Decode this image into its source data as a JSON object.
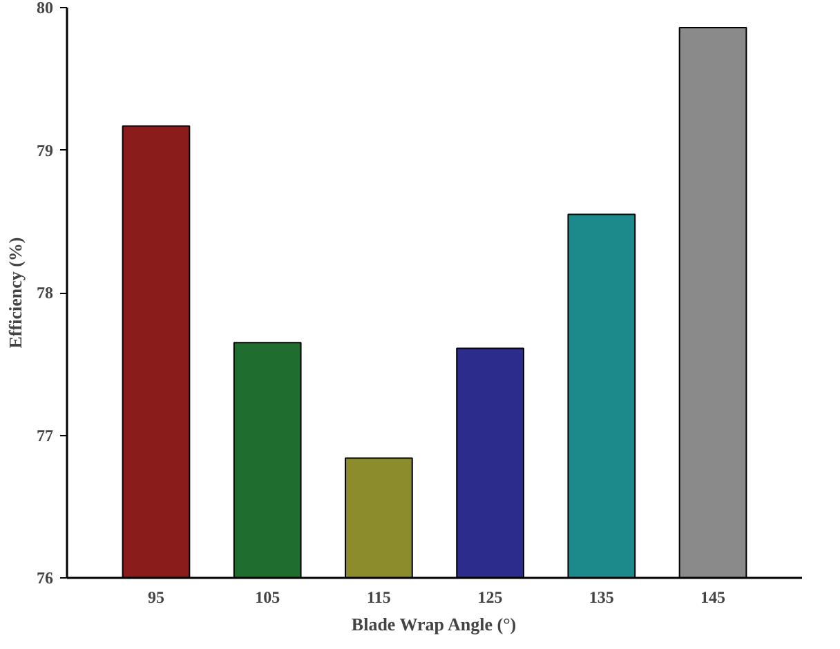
{
  "chart_data": {
    "type": "bar",
    "xlabel": "Blade Wrap Angle (°)",
    "ylabel": "Efficiency (%)",
    "categories": [
      "95",
      "105",
      "115",
      "125",
      "135",
      "145"
    ],
    "values": [
      79.17,
      77.65,
      76.84,
      77.61,
      78.55,
      79.86
    ],
    "colors": [
      "#8b1c1c",
      "#1f6e30",
      "#8c8c2c",
      "#2c2c8c",
      "#1c8a8a",
      "#8a8a8a"
    ],
    "ylim": [
      76,
      80
    ],
    "yticks": [
      76,
      77,
      78,
      79,
      80
    ],
    "grid": false
  }
}
